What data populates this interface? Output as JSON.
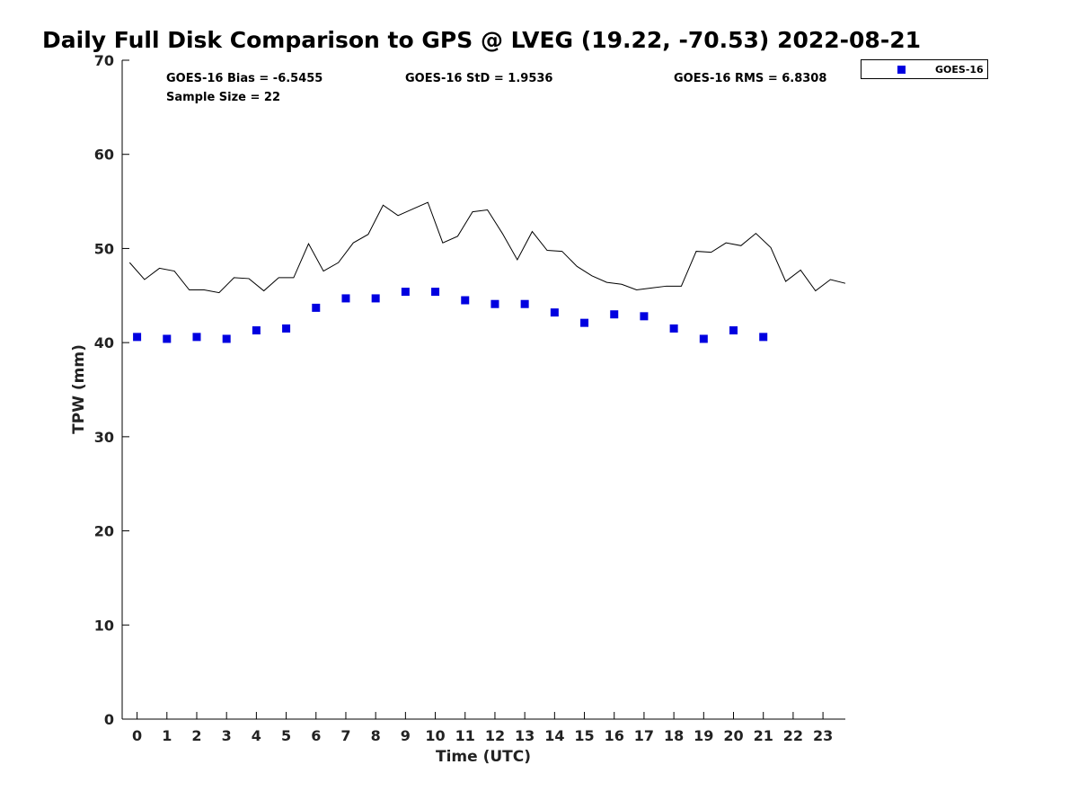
{
  "chart_data": {
    "type": "scatter",
    "title": "Daily Full Disk Comparison to GPS @ LVEG (19.22, -70.53) 2022-08-21",
    "xlabel": "Time (UTC)",
    "ylabel": "TPW (mm)",
    "xlim": [
      -0.5,
      23.75
    ],
    "ylim": [
      0,
      70
    ],
    "x_ticks": [
      "0",
      "1",
      "2",
      "3",
      "4",
      "5",
      "6",
      "7",
      "8",
      "9",
      "10",
      "11",
      "12",
      "13",
      "14",
      "15",
      "16",
      "17",
      "18",
      "19",
      "20",
      "21",
      "22",
      "23"
    ],
    "y_ticks": [
      "0",
      "10",
      "20",
      "30",
      "40",
      "50",
      "60",
      "70"
    ],
    "grid": false,
    "legend_position": "top-right outside",
    "stats": {
      "bias": "GOES-16 Bias = -6.5455",
      "std": "GOES-16 StD = 1.9536",
      "rms": "GOES-16 RMS = 6.8308",
      "sample": "Sample Size = 22"
    },
    "series": [
      {
        "name": "GOES-16",
        "kind": "marker",
        "color": "#0000e0",
        "x": [
          0,
          1,
          2,
          3,
          4,
          5,
          6,
          7,
          8,
          9,
          10,
          11,
          12,
          13,
          14,
          15,
          16,
          17,
          18,
          19,
          20,
          21
        ],
        "y": [
          40.6,
          40.4,
          40.6,
          40.4,
          41.3,
          41.5,
          43.7,
          44.7,
          44.7,
          45.4,
          45.4,
          44.5,
          44.1,
          44.1,
          43.2,
          42.1,
          43.0,
          42.8,
          41.5,
          40.4,
          41.3,
          40.6
        ]
      },
      {
        "kind": "line",
        "color": "#000000",
        "x": [
          -0.25,
          0.25,
          0.75,
          1.25,
          1.75,
          2.25,
          2.75,
          3.25,
          3.75,
          4.25,
          4.75,
          5.25,
          5.75,
          6.25,
          6.75,
          7.25,
          7.75,
          8.25,
          8.75,
          9.25,
          9.75,
          10.25,
          10.75,
          11.25,
          11.75,
          12.25,
          12.75,
          13.25,
          13.75,
          14.25,
          14.75,
          15.25,
          15.75,
          16.25,
          16.75,
          17.25,
          17.75,
          18.25,
          18.75,
          19.25,
          19.75,
          20.25,
          20.75,
          21.25,
          21.75,
          22.25,
          22.75,
          23.25,
          23.75
        ],
        "y": [
          48.5,
          46.7,
          47.9,
          47.6,
          45.6,
          45.6,
          45.3,
          46.9,
          46.8,
          45.5,
          46.9,
          46.9,
          50.5,
          47.6,
          48.5,
          50.6,
          51.5,
          54.6,
          53.5,
          54.2,
          54.9,
          50.6,
          51.3,
          53.9,
          54.1,
          51.6,
          48.8,
          51.8,
          49.8,
          49.7,
          48.1,
          47.1,
          46.4,
          46.2,
          45.6,
          45.8,
          46.0,
          46.0,
          49.7,
          49.6,
          50.6,
          50.3,
          51.6,
          50.1,
          46.5,
          47.7,
          45.5,
          46.7,
          46.3
        ]
      }
    ]
  }
}
